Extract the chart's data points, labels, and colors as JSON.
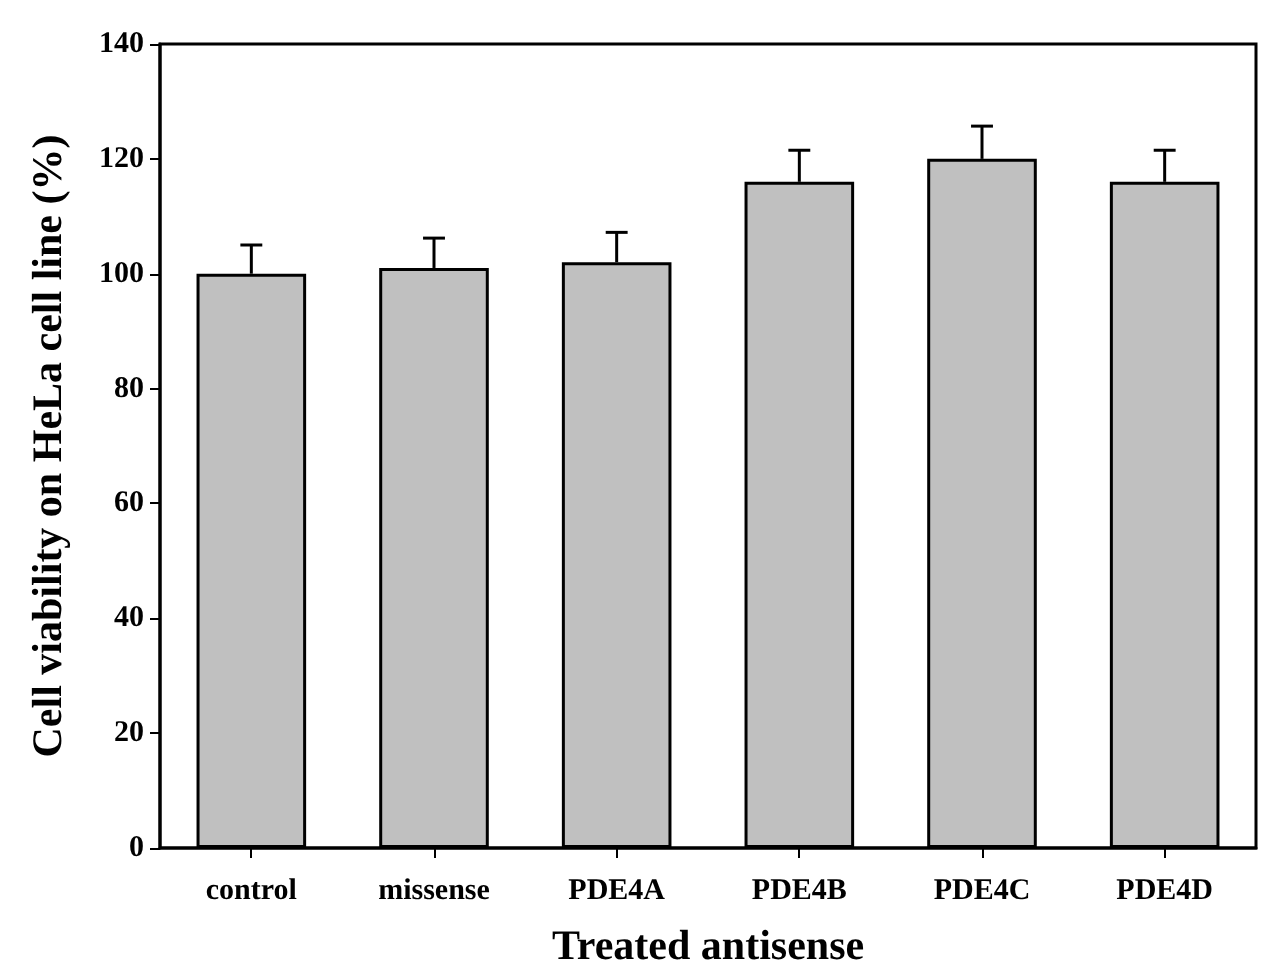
{
  "chart_data": {
    "type": "bar",
    "xlabel": "Treated antisense",
    "ylabel": "Cell viability on HeLa cell line (%)",
    "categories": [
      "control",
      "missense",
      "PDE4A",
      "PDE4B",
      "PDE4C",
      "PDE4D"
    ],
    "values": [
      100,
      101,
      102,
      116,
      120,
      116
    ],
    "errors": [
      [
        100,
        105
      ],
      [
        101,
        106.2
      ],
      [
        102,
        107.2
      ],
      [
        116,
        121.5
      ],
      [
        120,
        125.7
      ],
      [
        116,
        121.5
      ]
    ],
    "color": "#c0c0c0",
    "ylim": [
      0,
      140
    ],
    "yticks": [
      0,
      20,
      40,
      60,
      80,
      100,
      120,
      140
    ],
    "grid": false
  }
}
